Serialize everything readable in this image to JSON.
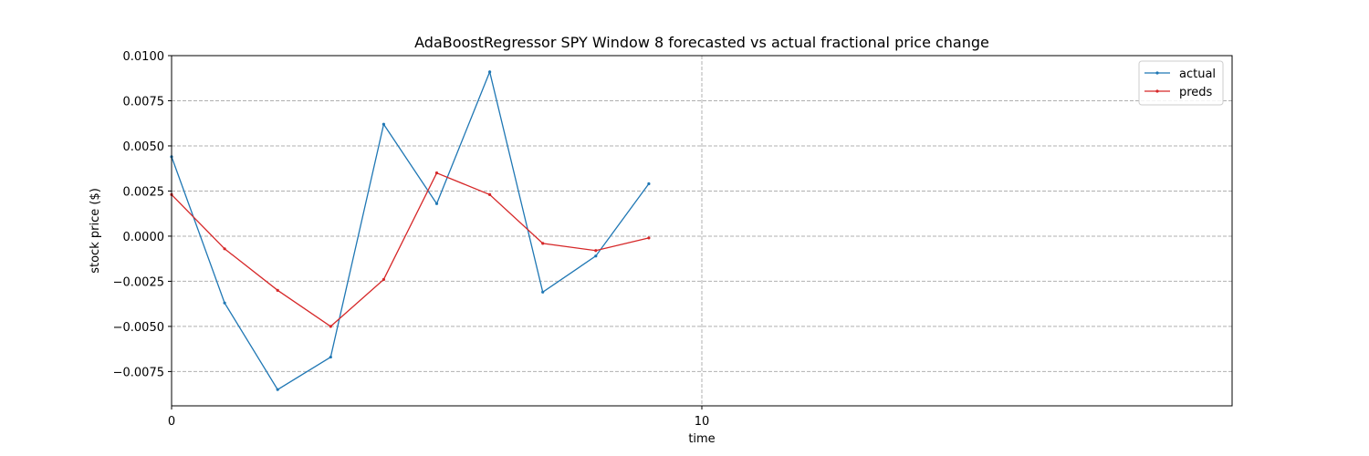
{
  "chart_data": {
    "type": "line",
    "title": "AdaBoostRegressor SPY Window 8 forecasted vs actual fractional price change",
    "xlabel": "time",
    "ylabel": "stock price ($)",
    "xlim": [
      0,
      20
    ],
    "ylim": [
      -0.0094,
      0.01
    ],
    "x_ticks": [
      0,
      10
    ],
    "x_tick_labels": [
      "0",
      "10"
    ],
    "y_ticks": [
      -0.0075,
      -0.005,
      -0.0025,
      0.0,
      0.0025,
      0.005,
      0.0075,
      0.01
    ],
    "y_tick_labels": [
      "−0.0075",
      "−0.0050",
      "−0.0025",
      "0.0000",
      "0.0025",
      "0.0050",
      "0.0075",
      "0.0100"
    ],
    "grid": true,
    "legend_position": "top-right",
    "x": [
      0,
      1,
      2,
      3,
      4,
      5,
      6,
      7,
      8,
      9
    ],
    "series": [
      {
        "name": "actual",
        "color": "#1f77b4",
        "values": [
          0.0044,
          -0.0037,
          -0.0085,
          -0.0067,
          0.0062,
          0.0018,
          0.0091,
          -0.0031,
          -0.0011,
          0.0029
        ]
      },
      {
        "name": "preds",
        "color": "#d62728",
        "values": [
          0.0023,
          -0.0007,
          -0.003,
          -0.005,
          -0.0024,
          0.0035,
          0.0023,
          -0.0004,
          -0.0008,
          -0.0001
        ]
      }
    ]
  }
}
